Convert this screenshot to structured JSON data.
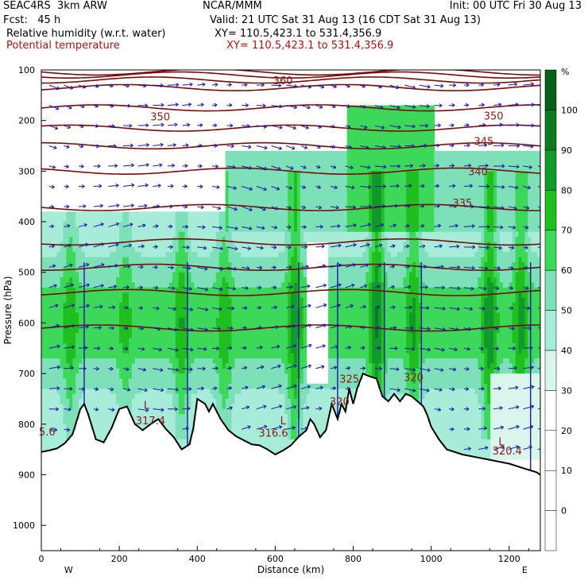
{
  "header": {
    "model": "SEAC4RS  3km ARW",
    "fcst": "Fcst:   45 h",
    "org": "NCAR/MMM",
    "init": "Init: 00 UTC Fri 30 Aug 13",
    "valid": "Valid: 21 UTC Sat 31 Aug 13 (16 CDT Sat 31 Aug 13)",
    "field1": "Relative humidity (w.r.t. water)",
    "field1_xy": "XY= 110.5,423.1 to 531.4,356.9",
    "field2": "Potential temperature",
    "field2_xy": "XY= 110.5,423.1 to 531.4,356.9"
  },
  "chart_data": {
    "type": "cross-section",
    "xlabel": "Distance (km)",
    "ylabel": "Pressure (hPa)",
    "xlim": [
      0,
      1280
    ],
    "ylim": [
      1050,
      100
    ],
    "x_ticks": [
      0,
      200,
      400,
      600,
      800,
      1000,
      1200
    ],
    "y_ticks": [
      100,
      200,
      300,
      400,
      500,
      600,
      700,
      800,
      900,
      1000
    ],
    "x_end_labels": [
      "W",
      "E"
    ],
    "colorbar": {
      "unit": "%",
      "levels": [
        0,
        10,
        20,
        30,
        40,
        50,
        60,
        70,
        80,
        90,
        100
      ],
      "colors": [
        "#ffffff",
        "#ffffff",
        "#ffffff",
        "#ffffff",
        "#d9f5ec",
        "#a6ecd9",
        "#7de0b8",
        "#3cd85a",
        "#1fbf1f",
        "#119a2c",
        "#0b7a22",
        "#06611a"
      ]
    },
    "theta_labels": [
      {
        "x": 620,
        "p": 128,
        "text": "360"
      },
      {
        "x": 305,
        "p": 200,
        "text": "350"
      },
      {
        "x": 1160,
        "p": 198,
        "text": "350"
      },
      {
        "x": 1135,
        "p": 248,
        "text": "345"
      },
      {
        "x": 1120,
        "p": 308,
        "text": "340"
      },
      {
        "x": 1080,
        "p": 370,
        "text": "335"
      },
      {
        "x": 790,
        "p": 718,
        "text": "325"
      },
      {
        "x": 765,
        "p": 763,
        "text": "320"
      },
      {
        "x": 955,
        "p": 715,
        "text": "320"
      },
      {
        "x": 280,
        "p": 800,
        "text": "317.4"
      },
      {
        "x": 15,
        "p": 822,
        "text": "5.6"
      },
      {
        "x": 595,
        "p": 825,
        "text": "316.6"
      },
      {
        "x": 1195,
        "p": 860,
        "text": "320.4"
      }
    ],
    "low_labels": [
      {
        "x": 270,
        "p": 770,
        "text": "L"
      },
      {
        "x": 620,
        "p": 800,
        "text": "L"
      },
      {
        "x": 1180,
        "p": 842,
        "text": "L"
      }
    ],
    "terrain": [
      [
        0,
        855
      ],
      [
        20,
        852
      ],
      [
        40,
        848
      ],
      [
        60,
        838
      ],
      [
        80,
        820
      ],
      [
        100,
        770
      ],
      [
        110,
        760
      ],
      [
        120,
        780
      ],
      [
        140,
        830
      ],
      [
        160,
        836
      ],
      [
        180,
        808
      ],
      [
        200,
        770
      ],
      [
        220,
        765
      ],
      [
        240,
        800
      ],
      [
        260,
        812
      ],
      [
        280,
        800
      ],
      [
        300,
        790
      ],
      [
        320,
        810
      ],
      [
        340,
        826
      ],
      [
        360,
        850
      ],
      [
        380,
        840
      ],
      [
        390,
        808
      ],
      [
        400,
        750
      ],
      [
        420,
        760
      ],
      [
        430,
        775
      ],
      [
        440,
        760
      ],
      [
        460,
        790
      ],
      [
        480,
        812
      ],
      [
        500,
        824
      ],
      [
        520,
        832
      ],
      [
        540,
        840
      ],
      [
        560,
        842
      ],
      [
        580,
        850
      ],
      [
        600,
        860
      ],
      [
        620,
        852
      ],
      [
        640,
        842
      ],
      [
        660,
        825
      ],
      [
        680,
        812
      ],
      [
        690,
        790
      ],
      [
        700,
        800
      ],
      [
        715,
        826
      ],
      [
        730,
        812
      ],
      [
        745,
        760
      ],
      [
        760,
        790
      ],
      [
        770,
        760
      ],
      [
        780,
        775
      ],
      [
        790,
        730
      ],
      [
        800,
        760
      ],
      [
        810,
        730
      ],
      [
        825,
        700
      ],
      [
        840,
        705
      ],
      [
        860,
        710
      ],
      [
        875,
        745
      ],
      [
        890,
        755
      ],
      [
        905,
        740
      ],
      [
        920,
        755
      ],
      [
        935,
        740
      ],
      [
        950,
        745
      ],
      [
        965,
        755
      ],
      [
        980,
        765
      ],
      [
        990,
        782
      ],
      [
        1000,
        805
      ],
      [
        1020,
        830
      ],
      [
        1040,
        850
      ],
      [
        1080,
        860
      ],
      [
        1120,
        866
      ],
      [
        1160,
        872
      ],
      [
        1200,
        878
      ],
      [
        1240,
        888
      ],
      [
        1270,
        895
      ],
      [
        1280,
        900
      ]
    ],
    "theta_lines": [
      {
        "p": 104
      },
      {
        "p": 110
      },
      {
        "p": 120
      },
      {
        "p": 135
      },
      {
        "p": 175
      },
      {
        "p": 215
      },
      {
        "p": 250
      },
      {
        "p": 300
      },
      {
        "p": 372
      },
      {
        "p": 440
      },
      {
        "p": 490
      },
      {
        "p": 540
      },
      {
        "p": 610
      }
    ]
  }
}
